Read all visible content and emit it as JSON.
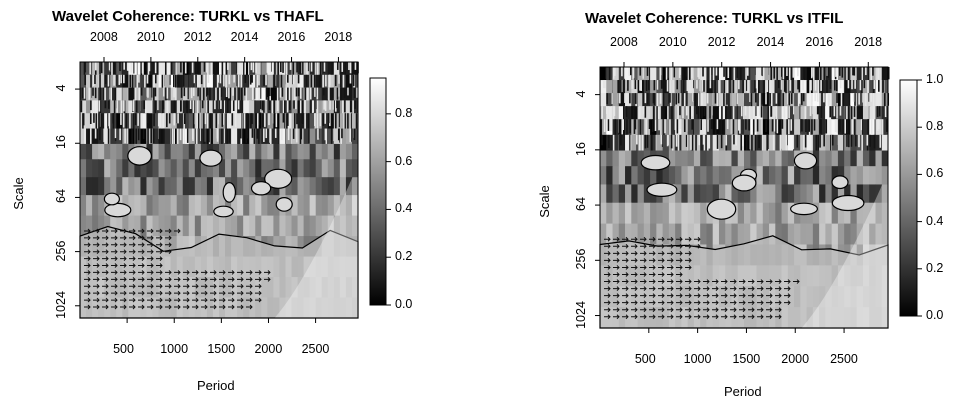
{
  "chart_data": [
    {
      "type": "heatmap",
      "title": "Wavelet Coherence: TURKL vs THAFL",
      "xlabel": "Period",
      "ylabel": "Scale",
      "x_ticks": [
        "500",
        "1000",
        "1500",
        "2000",
        "2500"
      ],
      "x_tick_values": [
        500,
        1000,
        1500,
        2000,
        2500
      ],
      "xlim": [
        0,
        2950
      ],
      "top_ticks": [
        "2008",
        "2010",
        "2012",
        "2014",
        "2016",
        "2018"
      ],
      "y_ticks": [
        "4",
        "16",
        "64",
        "256",
        "1024"
      ],
      "y_tick_values": [
        4,
        16,
        64,
        256,
        1024
      ],
      "ylim": [
        2,
        1400
      ],
      "y_scale": "log2, reversed",
      "colorbar": {
        "min": 0.0,
        "max": 0.95,
        "ticks": [
          "0.0",
          "0.2",
          "0.4",
          "0.6",
          "0.8"
        ],
        "tick_values": [
          0.0,
          0.2,
          0.4,
          0.6,
          0.8
        ]
      },
      "colormap": [
        "#000000",
        "#ffffff"
      ]
    },
    {
      "type": "heatmap",
      "title": "Wavelet Coherence: TURKL vs ITFIL",
      "xlabel": "Period",
      "ylabel": "Scale",
      "x_ticks": [
        "500",
        "1000",
        "1500",
        "2000",
        "2500"
      ],
      "x_tick_values": [
        500,
        1000,
        1500,
        2000,
        2500
      ],
      "xlim": [
        0,
        2950
      ],
      "top_ticks": [
        "2008",
        "2010",
        "2012",
        "2014",
        "2016",
        "2018"
      ],
      "y_ticks": [
        "4",
        "16",
        "64",
        "256",
        "1024"
      ],
      "y_tick_values": [
        4,
        16,
        64,
        256,
        1024
      ],
      "ylim": [
        2,
        1400
      ],
      "y_scale": "log2, reversed",
      "colorbar": {
        "min": 0.0,
        "max": 1.0,
        "ticks": [
          "0.0",
          "0.2",
          "0.4",
          "0.6",
          "0.8",
          "1.0"
        ],
        "tick_values": [
          0.0,
          0.2,
          0.4,
          0.6,
          0.8,
          1.0
        ]
      },
      "colormap": [
        "#000000",
        "#ffffff"
      ]
    }
  ]
}
